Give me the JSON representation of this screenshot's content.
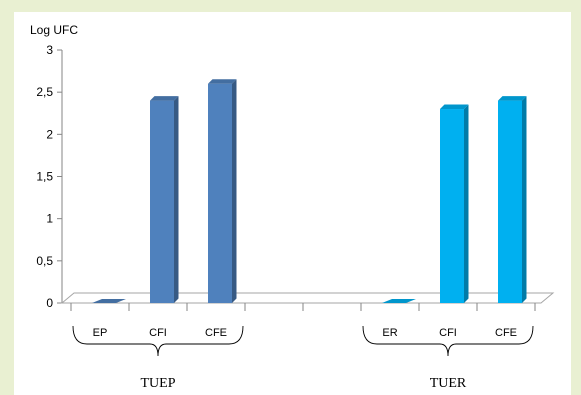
{
  "chart_data": {
    "type": "bar",
    "ylabel": "Log UFC",
    "ylim": [
      0,
      3
    ],
    "yticks": [
      "0",
      "0,5",
      "1",
      "1,5",
      "2",
      "2,5",
      "3"
    ],
    "grid": false,
    "categories": [
      "EP",
      "CFI",
      "CFE",
      "ER",
      "CFI",
      "CFE"
    ],
    "values": [
      0,
      2.4,
      2.6,
      0,
      2.3,
      2.4
    ],
    "groups": [
      {
        "label": "TUEP",
        "members": [
          "EP",
          "CFI",
          "CFE"
        ],
        "color": "#4f81bd"
      },
      {
        "label": "TUER",
        "members": [
          "ER",
          "CFI",
          "CFE"
        ],
        "color": "#00b0f0"
      }
    ]
  }
}
